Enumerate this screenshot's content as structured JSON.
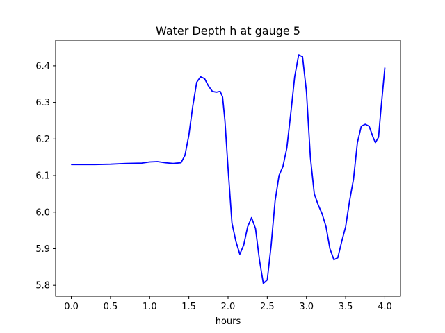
{
  "chart_data": {
    "type": "line",
    "title": "Water Depth h at gauge 5",
    "xlabel": "hours",
    "ylabel": "",
    "xlim": [
      -0.2,
      4.2
    ],
    "ylim": [
      5.77,
      6.47
    ],
    "xticks": [
      0.0,
      0.5,
      1.0,
      1.5,
      2.0,
      2.5,
      3.0,
      3.5,
      4.0
    ],
    "xtick_labels": [
      "0.0",
      "0.5",
      "1.0",
      "1.5",
      "2.0",
      "2.5",
      "3.0",
      "3.5",
      "4.0"
    ],
    "yticks": [
      5.8,
      5.9,
      6.0,
      6.1,
      6.2,
      6.3,
      6.4
    ],
    "ytick_labels": [
      "5.8",
      "5.9",
      "6.0",
      "6.1",
      "6.2",
      "6.3",
      "6.4"
    ],
    "grid": false,
    "series": [
      {
        "color": "#0000ff",
        "x": [
          0.0,
          0.3,
          0.5,
          0.7,
          0.9,
          1.0,
          1.1,
          1.2,
          1.3,
          1.4,
          1.45,
          1.5,
          1.55,
          1.6,
          1.65,
          1.7,
          1.75,
          1.8,
          1.85,
          1.9,
          1.93,
          1.96,
          2.0,
          2.05,
          2.1,
          2.15,
          2.2,
          2.25,
          2.3,
          2.35,
          2.4,
          2.45,
          2.5,
          2.55,
          2.6,
          2.65,
          2.7,
          2.75,
          2.8,
          2.85,
          2.9,
          2.95,
          3.0,
          3.05,
          3.1,
          3.15,
          3.2,
          3.25,
          3.3,
          3.35,
          3.4,
          3.45,
          3.5,
          3.55,
          3.6,
          3.65,
          3.7,
          3.75,
          3.8,
          3.85,
          3.88,
          3.92,
          3.95,
          4.0
        ],
        "y": [
          6.13,
          6.13,
          6.131,
          6.133,
          6.134,
          6.137,
          6.138,
          6.135,
          6.133,
          6.135,
          6.155,
          6.21,
          6.29,
          6.355,
          6.37,
          6.365,
          6.345,
          6.33,
          6.328,
          6.33,
          6.315,
          6.25,
          6.12,
          5.97,
          5.92,
          5.885,
          5.91,
          5.96,
          5.985,
          5.955,
          5.87,
          5.805,
          5.815,
          5.91,
          6.03,
          6.1,
          6.125,
          6.175,
          6.27,
          6.37,
          6.43,
          6.425,
          6.33,
          6.15,
          6.05,
          6.02,
          5.995,
          5.96,
          5.9,
          5.87,
          5.875,
          5.92,
          5.96,
          6.03,
          6.09,
          6.19,
          6.235,
          6.24,
          6.235,
          6.205,
          6.19,
          6.205,
          6.28,
          6.395
        ]
      }
    ]
  }
}
